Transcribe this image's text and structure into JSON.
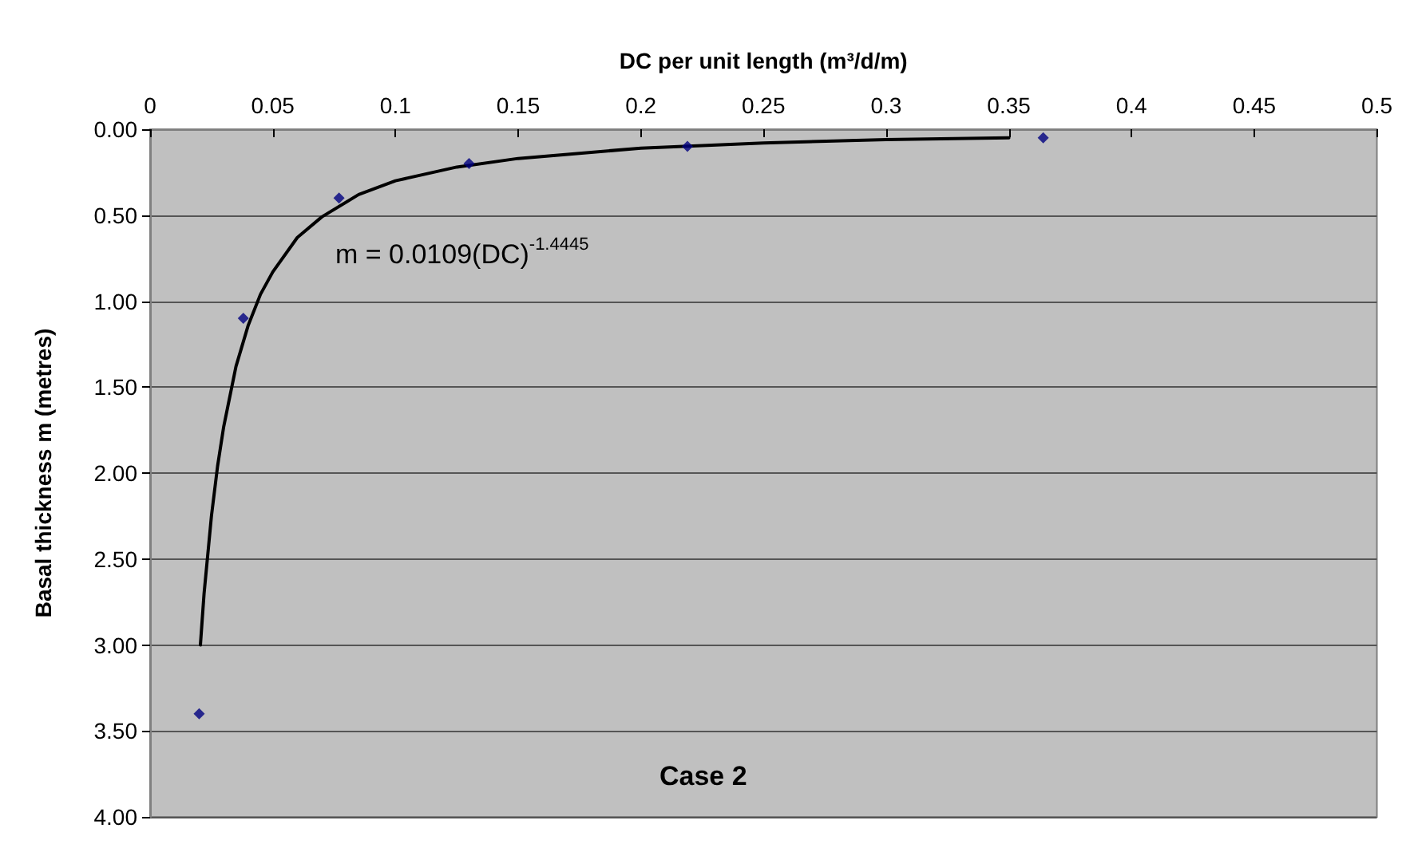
{
  "chart_data": {
    "type": "scatter",
    "xlabel": "DC per unit length (m³/d/m)",
    "ylabel": "Basal thickness m (metres)",
    "xlim": [
      0,
      0.5
    ],
    "xticks": [
      0,
      0.05,
      0.1,
      0.15,
      0.2,
      0.25,
      0.3,
      0.35,
      0.4,
      0.45,
      0.5
    ],
    "ylim": [
      4,
      0
    ],
    "yticks": [
      {
        "value": 0,
        "label": "0.00"
      },
      {
        "value": 0.5,
        "label": "0.50"
      },
      {
        "value": 1,
        "label": "1.00"
      },
      {
        "value": 1.5,
        "label": "1.50"
      },
      {
        "value": 2,
        "label": "2.00"
      },
      {
        "value": 2.5,
        "label": "2.50"
      },
      {
        "value": 3,
        "label": "3.00"
      },
      {
        "value": 3.5,
        "label": "3.50"
      },
      {
        "value": 4,
        "label": "4.00"
      }
    ],
    "grid": "y",
    "marker": "diamond",
    "series": [
      {
        "color": "#000080",
        "x": [
          0.02,
          0.038,
          0.077,
          0.13,
          0.219,
          0.364
        ],
        "values": [
          3.4,
          1.1,
          0.4,
          0.2,
          0.1,
          0.05
        ]
      },
      {
        "type": "line",
        "color": "#000000",
        "marker": "none",
        "line_style": "solid",
        "x": [
          0.0205,
          0.022,
          0.025,
          0.0275,
          0.03,
          0.035,
          0.04,
          0.045,
          0.05,
          0.06,
          0.07,
          0.085,
          0.1,
          0.125,
          0.15,
          0.2,
          0.25,
          0.3,
          0.35
        ],
        "values": [
          3.0,
          2.7,
          2.25,
          1.96,
          1.73,
          1.38,
          1.14,
          0.96,
          0.83,
          0.63,
          0.51,
          0.38,
          0.3,
          0.22,
          0.17,
          0.11,
          0.08,
          0.06,
          0.05
        ]
      }
    ],
    "annotations": [
      "m = 0.0109(DC)$^{-1.4445}$",
      "Case 2"
    ]
  }
}
